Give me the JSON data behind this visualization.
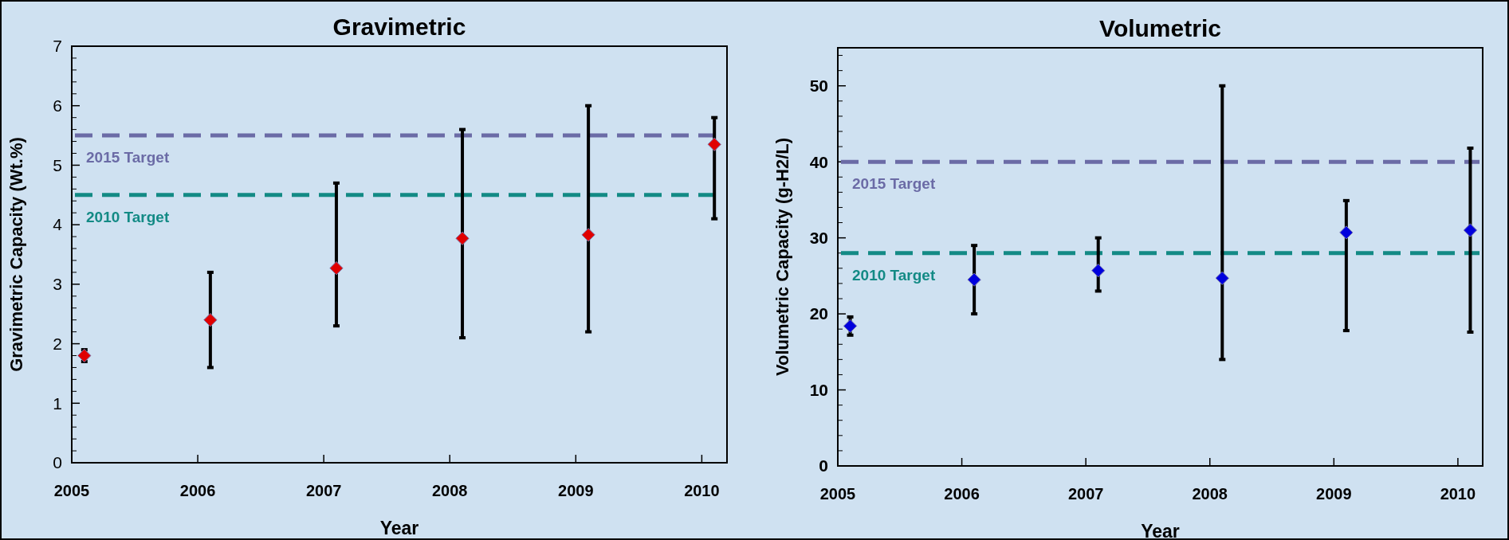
{
  "chart_data": [
    {
      "type": "scatter",
      "title": "Gravimetric",
      "xlabel": "Year",
      "ylabel": "Gravimetric Capacity (Wt.%)",
      "marker": "diamond",
      "grid": false,
      "x": [
        2005.1,
        2006.1,
        2007.1,
        2008.1,
        2009.1,
        2010.1
      ],
      "series": [
        {
          "color": "#e00000",
          "values": [
            1.8,
            2.4,
            3.27,
            3.77,
            3.83,
            5.35
          ],
          "errors": [
            [
              1.7,
              1.9
            ],
            [
              1.6,
              3.2
            ],
            [
              2.3,
              4.7
            ],
            [
              2.1,
              5.6
            ],
            [
              2.2,
              6.0
            ],
            [
              4.1,
              5.8
            ]
          ]
        }
      ],
      "xlim": [
        2005,
        2010.2
      ],
      "xticks": [
        2005,
        2006,
        2007,
        2008,
        2009,
        2010
      ],
      "ylim": [
        0,
        7
      ],
      "yticks": [
        0,
        1,
        2,
        3,
        4,
        5,
        6,
        7
      ],
      "ref_lines": [
        {
          "axis": "y",
          "value": 5.5,
          "label": "2015 Target",
          "color": "#6b6ba6",
          "line_style": "dashed"
        },
        {
          "axis": "y",
          "value": 4.5,
          "label": "2010 Target",
          "color": "#138a85",
          "line_style": "dashed"
        }
      ]
    },
    {
      "type": "scatter",
      "title": "Volumetric",
      "xlabel": "Year",
      "ylabel": "Volumetric Capacity (g-H2/L)",
      "marker": "diamond",
      "grid": false,
      "x": [
        2005.1,
        2006.1,
        2007.1,
        2008.1,
        2009.1,
        2010.1
      ],
      "series": [
        {
          "color": "#0000dd",
          "values": [
            18.4,
            24.5,
            25.7,
            24.7,
            30.7,
            31
          ],
          "errors": [
            [
              17.2,
              19.6
            ],
            [
              20,
              29
            ],
            [
              23,
              30
            ],
            [
              14,
              50
            ],
            [
              17.8,
              34.9
            ],
            [
              17.6,
              41.8
            ]
          ]
        }
      ],
      "xlim": [
        2005,
        2010.2
      ],
      "xticks": [
        2005,
        2006,
        2007,
        2008,
        2009,
        2010
      ],
      "ylim": [
        0,
        55
      ],
      "yticks": [
        0,
        10,
        20,
        30,
        40,
        50
      ],
      "ref_lines": [
        {
          "axis": "y",
          "value": 40,
          "label": "2015 Target",
          "color": "#6b6ba6",
          "line_style": "dashed"
        },
        {
          "axis": "y",
          "value": 28,
          "label": "2010 Target",
          "color": "#138a85",
          "line_style": "dashed"
        }
      ]
    }
  ]
}
